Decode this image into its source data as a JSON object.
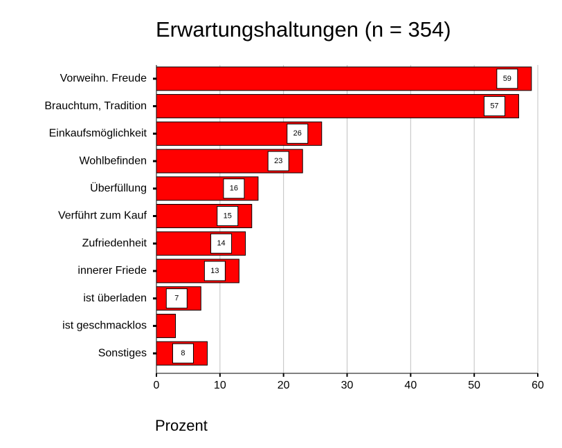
{
  "chart_data": {
    "type": "hbar",
    "title": "Erwartungshaltungen (n = 354)",
    "x_label": "Prozent",
    "categories": [
      "Vorweihn. Freude",
      "Brauchtum, Tradition",
      "Einkaufsmöglichkeit",
      "Wohlbefinden",
      "Überfüllung",
      "Verführt zum Kauf",
      "Zufriedenheit",
      "innerer Friede",
      "ist überladen",
      "ist geschmacklos",
      "Sonstiges"
    ],
    "values": [
      59,
      57,
      26,
      23,
      16,
      15,
      14,
      13,
      7,
      3,
      8
    ],
    "value_labels": [
      "59",
      "57",
      "26",
      "23",
      "16",
      "15",
      "14",
      "13",
      "7",
      null,
      "8"
    ],
    "color": "#ff0000",
    "xlim": [
      0,
      60
    ],
    "xticks": [
      0,
      10,
      20,
      30,
      40,
      50,
      60
    ],
    "grid": true
  }
}
